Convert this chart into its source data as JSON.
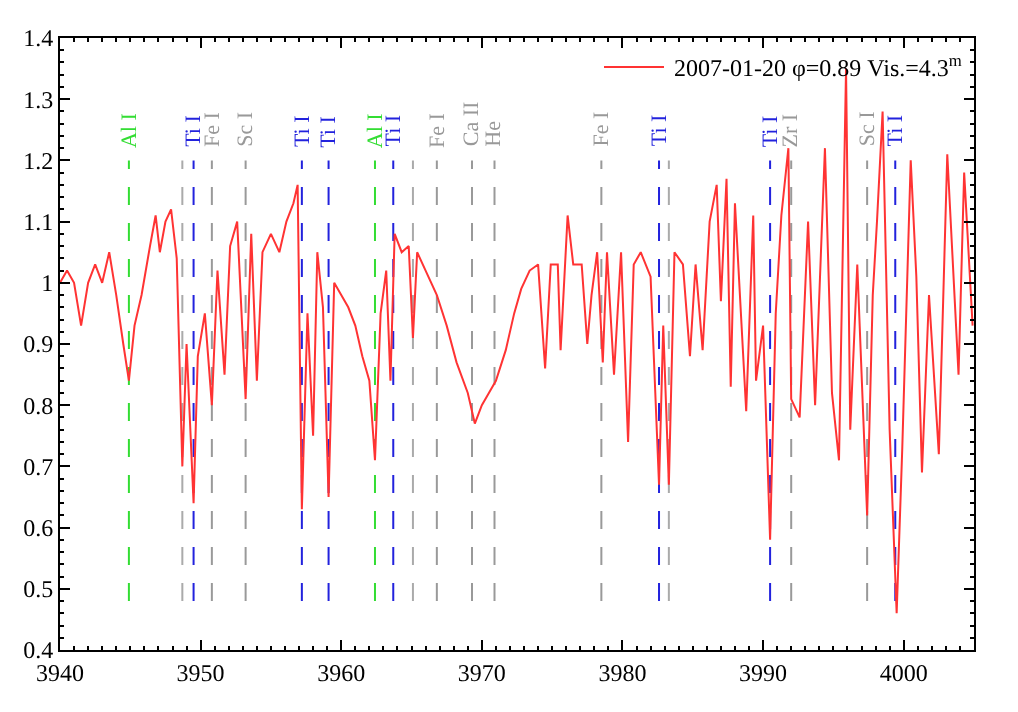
{
  "chart_data": {
    "type": "line",
    "xlim": [
      3940,
      4005
    ],
    "xticks": [
      3940,
      3950,
      3960,
      3970,
      3980,
      3990,
      4000
    ],
    "ylim": [
      0.4,
      1.4
    ],
    "yticks": [
      0.4,
      0.5,
      0.6,
      0.7,
      0.8,
      0.9,
      1,
      1.1,
      1.2,
      1.3,
      1.4
    ],
    "legend": "top right",
    "line_style": "solid",
    "marker": "none",
    "series": [
      {
        "name": "2007-01-20 φ=0.89 Vis.=4.3$^{m}$",
        "color": "#ff3333",
        "x": [
          3940.0,
          3940.5,
          3941.0,
          3941.5,
          3942.0,
          3942.5,
          3943.0,
          3943.5,
          3944.0,
          3944.5,
          3944.9,
          3945.3,
          3945.8,
          3946.4,
          3946.8,
          3947.1,
          3947.5,
          3947.9,
          3948.3,
          3948.7,
          3949.0,
          3949.5,
          3949.8,
          3950.3,
          3950.8,
          3951.2,
          3951.7,
          3952.1,
          3952.6,
          3953.2,
          3953.6,
          3954.0,
          3954.4,
          3955.0,
          3955.6,
          3956.1,
          3956.6,
          3956.9,
          3957.2,
          3957.6,
          3958.0,
          3958.3,
          3958.7,
          3959.1,
          3959.5,
          3960.0,
          3960.5,
          3961.0,
          3961.5,
          3962.0,
          3962.4,
          3962.8,
          3963.2,
          3963.5,
          3963.8,
          3964.3,
          3964.8,
          3965.1,
          3965.4,
          3966.0,
          3966.8,
          3967.5,
          3968.2,
          3969.0,
          3969.5,
          3970.0,
          3970.5,
          3971.0,
          3971.7,
          3972.3,
          3972.8,
          3973.4,
          3974.0,
          3974.5,
          3974.9,
          3975.4,
          3975.6,
          3976.1,
          3976.5,
          3977.1,
          3977.5,
          3977.8,
          3978.2,
          3978.6,
          3978.9,
          3979.4,
          3979.9,
          3980.4,
          3980.8,
          3981.3,
          3982.0,
          3982.6,
          3982.9,
          3983.3,
          3983.7,
          3984.3,
          3984.8,
          3985.2,
          3985.7,
          3986.2,
          3986.7,
          3987.0,
          3987.4,
          3987.7,
          3988.0,
          3988.8,
          3989.3,
          3989.5,
          3990.0,
          3990.5,
          3990.9,
          3991.3,
          3991.8,
          3992.0,
          3992.6,
          3993.2,
          3993.7,
          3994.4,
          3994.9,
          3995.4,
          3995.9,
          3996.2,
          3996.7,
          3997.4,
          3997.8,
          3998.1,
          3998.5,
          3999.0,
          3999.5,
          3999.9,
          4000.5,
          4000.9,
          4001.3,
          4001.8,
          4002.5,
          4003.1,
          4003.9,
          4004.3,
          4004.9
        ],
        "values": [
          1.0,
          1.02,
          1.0,
          0.93,
          1.0,
          1.03,
          1.0,
          1.05,
          0.98,
          0.9,
          0.84,
          0.93,
          0.98,
          1.06,
          1.11,
          1.05,
          1.1,
          1.12,
          1.04,
          0.7,
          0.9,
          0.64,
          0.88,
          0.95,
          0.8,
          1.02,
          0.85,
          1.06,
          1.1,
          0.81,
          1.08,
          0.84,
          1.05,
          1.08,
          1.05,
          1.1,
          1.13,
          1.16,
          0.63,
          0.95,
          0.75,
          1.05,
          0.96,
          0.65,
          1.0,
          0.98,
          0.96,
          0.93,
          0.88,
          0.84,
          0.71,
          0.95,
          1.02,
          0.84,
          1.08,
          1.05,
          1.06,
          0.91,
          1.05,
          1.02,
          0.98,
          0.93,
          0.87,
          0.82,
          0.77,
          0.8,
          0.82,
          0.84,
          0.89,
          0.95,
          0.99,
          1.02,
          1.03,
          0.86,
          1.03,
          1.03,
          0.89,
          1.11,
          1.03,
          1.03,
          0.9,
          0.98,
          1.05,
          0.87,
          1.05,
          0.85,
          1.05,
          0.74,
          1.03,
          1.05,
          1.01,
          0.67,
          0.93,
          0.67,
          1.05,
          1.03,
          0.88,
          1.03,
          0.89,
          1.1,
          1.16,
          0.97,
          1.17,
          0.83,
          1.13,
          0.79,
          1.11,
          0.84,
          0.93,
          0.58,
          0.95,
          1.11,
          1.22,
          0.81,
          0.78,
          1.1,
          0.8,
          1.22,
          0.82,
          0.71,
          1.35,
          0.76,
          1.03,
          0.62,
          0.98,
          1.1,
          1.28,
          0.76,
          0.46,
          0.73,
          1.2,
          1.01,
          0.69,
          0.98,
          0.72,
          1.21,
          0.85,
          1.18,
          0.93
        ]
      }
    ],
    "ref_lines": [
      {
        "axis": "x",
        "value": 3944.9,
        "label": "Al I",
        "color": "#33dd33",
        "line_style": "dashed"
      },
      {
        "axis": "x",
        "value": 3948.7,
        "label": null,
        "color": "#aaaaaa",
        "line_style": "dashed"
      },
      {
        "axis": "x",
        "value": 3949.5,
        "label": "Ti I",
        "color": "#2222dd",
        "line_style": "dashed"
      },
      {
        "axis": "x",
        "value": 3950.8,
        "label": "Fe I",
        "color": "#999999",
        "line_style": "dashed"
      },
      {
        "axis": "x",
        "value": 3953.2,
        "label": "Sc I",
        "color": "#999999",
        "line_style": "dashed"
      },
      {
        "axis": "x",
        "value": 3957.2,
        "label": "Ti I",
        "color": "#2222dd",
        "line_style": "dashed"
      },
      {
        "axis": "x",
        "value": 3959.1,
        "label": "Ti I",
        "color": "#2222dd",
        "line_style": "dashed"
      },
      {
        "axis": "x",
        "value": 3962.4,
        "label": "Al I",
        "color": "#33dd33",
        "line_style": "dashed"
      },
      {
        "axis": "x",
        "value": 3963.7,
        "label": "Ti I",
        "color": "#2222dd",
        "line_style": "dashed"
      },
      {
        "axis": "x",
        "value": 3965.1,
        "label": null,
        "color": "#aaaaaa",
        "line_style": "dashed"
      },
      {
        "axis": "x",
        "value": 3966.8,
        "label": "Fe I",
        "color": "#999999",
        "line_style": "dashed"
      },
      {
        "axis": "x",
        "value": 3969.3,
        "label": "Ca II",
        "color": "#999999",
        "line_style": "dashed"
      },
      {
        "axis": "x",
        "value": 3970.9,
        "label": "He",
        "color": "#999999",
        "line_style": "dashed"
      },
      {
        "axis": "x",
        "value": 3978.5,
        "label": "Fe I",
        "color": "#999999",
        "line_style": "dashed"
      },
      {
        "axis": "x",
        "value": 3982.6,
        "label": "Ti I",
        "color": "#2222dd",
        "line_style": "dashed"
      },
      {
        "axis": "x",
        "value": 3983.3,
        "label": null,
        "color": "#aaaaaa",
        "line_style": "dashed"
      },
      {
        "axis": "x",
        "value": 3990.5,
        "label": "Ti I",
        "color": "#2222dd",
        "line_style": "dashed"
      },
      {
        "axis": "x",
        "value": 3992.0,
        "label": "Zr I",
        "color": "#999999",
        "line_style": "dashed"
      },
      {
        "axis": "x",
        "value": 3997.4,
        "label": "Sc I",
        "color": "#999999",
        "line_style": "dashed"
      },
      {
        "axis": "x",
        "value": 3999.4,
        "label": "Ti I",
        "color": "#2222dd",
        "line_style": "dashed"
      }
    ]
  }
}
